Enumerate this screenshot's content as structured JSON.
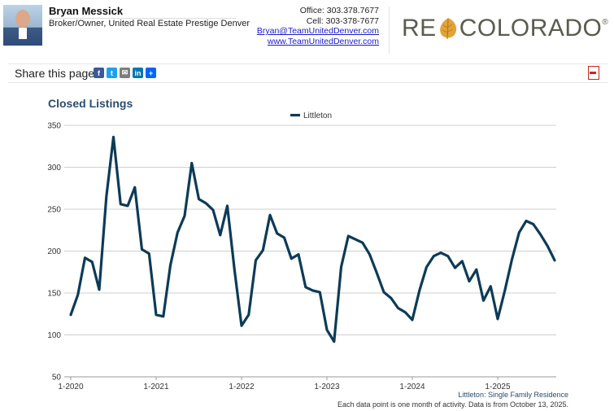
{
  "agent": {
    "name": "Bryan Messick",
    "title": "Broker/Owner, United Real Estate Prestige Denver",
    "office": "Office: 303.378.7677",
    "cell": "Cell: 303-378-7677",
    "email": "Bryan@TeamUnitedDenver.com",
    "website": "www.TeamUnitedDenver.com"
  },
  "logo": {
    "left": "RE",
    "right": "COLORADO",
    "mark": "®"
  },
  "share": {
    "label": "Share this page:",
    "icons": [
      "facebook-icon",
      "twitter-icon",
      "email-icon",
      "linkedin-icon",
      "add-icon"
    ]
  },
  "colors": {
    "series": "#0d3b57",
    "title": "#2a4d6e",
    "grid": "#cfcfcf"
  },
  "chart_data": {
    "type": "line",
    "title": "Closed Listings",
    "legend": {
      "position": "top-center"
    },
    "ylim": [
      50,
      350
    ],
    "yticks": [
      50,
      100,
      150,
      200,
      250,
      300,
      350
    ],
    "xticks": [
      {
        "label": "1-2020",
        "index": 0
      },
      {
        "label": "1-2021",
        "index": 12
      },
      {
        "label": "1-2022",
        "index": 24
      },
      {
        "label": "1-2023",
        "index": 36
      },
      {
        "label": "1-2024",
        "index": 48
      },
      {
        "label": "1-2025",
        "index": 60
      }
    ],
    "grid": true,
    "series": [
      {
        "name": "Littleton",
        "values": [
          124,
          148,
          192,
          187,
          154,
          265,
          336,
          256,
          254,
          276,
          202,
          197,
          124,
          122,
          183,
          222,
          242,
          305,
          262,
          257,
          249,
          219,
          254,
          178,
          111,
          124,
          189,
          201,
          243,
          221,
          216,
          191,
          196,
          157,
          153,
          151,
          106,
          92,
          181,
          218,
          214,
          210,
          196,
          174,
          151,
          144,
          132,
          127,
          118,
          153,
          181,
          194,
          198,
          194,
          180,
          188,
          164,
          178,
          141,
          158,
          119,
          153,
          190,
          222,
          236,
          232,
          220,
          206,
          189
        ]
      }
    ],
    "footnote_series": "Littleton: Single Family Residence",
    "footnote_source": "Each data point is one month of activity. Data is from October 13, 2025."
  }
}
